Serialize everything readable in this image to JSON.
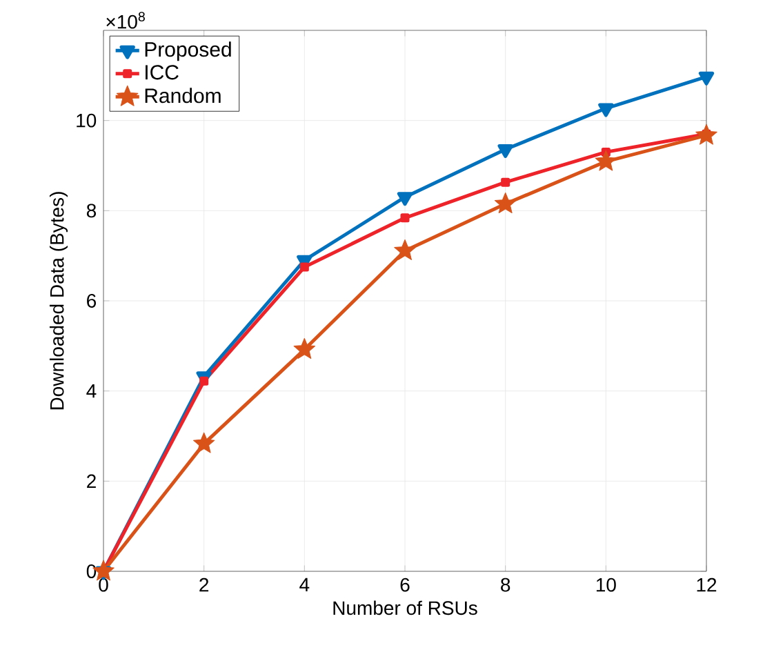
{
  "chart_data": {
    "type": "line",
    "xlabel": "Number of RSUs",
    "ylabel": "Downloaded Data (Bytes)",
    "annotations": [
      "×10$^{8}$"
    ],
    "x": [
      0,
      2,
      4,
      6,
      8,
      10,
      12
    ],
    "series": [
      {
        "name": "Proposed",
        "color": "#0072bd",
        "marker": "triangle",
        "values": [
          0,
          4.32,
          6.9,
          8.3,
          9.36,
          10.27,
          10.97
        ]
      },
      {
        "name": "ICC",
        "color": "#ee2229",
        "marker": "square",
        "values": [
          0,
          4.22,
          6.75,
          7.84,
          8.63,
          9.3,
          9.7
        ]
      },
      {
        "name": "Random",
        "color": "#d95319",
        "marker": "star",
        "values": [
          0,
          2.83,
          4.92,
          7.11,
          8.15,
          9.09,
          9.67
        ]
      }
    ],
    "xlim": [
      0,
      12
    ],
    "ylim": [
      0,
      12
    ],
    "xticks": [
      0,
      2,
      4,
      6,
      8,
      10,
      12
    ],
    "yticks": [
      0,
      2,
      4,
      6,
      8,
      10
    ],
    "grid": true,
    "legend": "top left",
    "line_style": "solid"
  }
}
